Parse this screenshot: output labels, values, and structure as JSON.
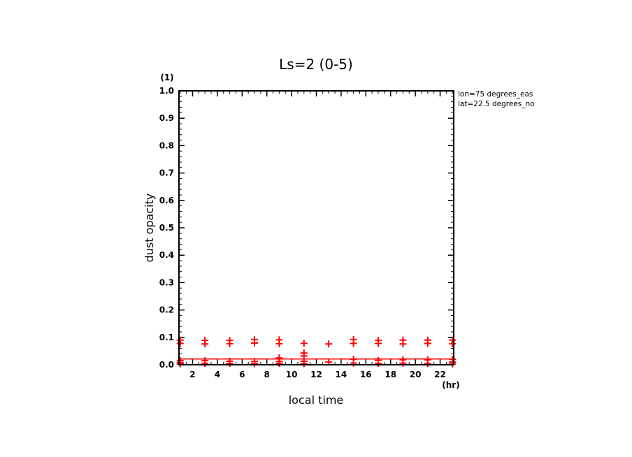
{
  "chart_data": {
    "type": "scatter",
    "title": "Ls=2 (0-5)",
    "xlabel": "local time",
    "ylabel": "dust opacity",
    "x_unit": "(hr)",
    "y_unit": "(1)",
    "info_lines": [
      "lon=75 degrees_eas",
      "lat=22.5 degrees_no"
    ],
    "xlim": [
      0.9,
      23.1
    ],
    "ylim": [
      0,
      1.0
    ],
    "x_ticks": [
      2,
      4,
      6,
      8,
      10,
      12,
      14,
      16,
      18,
      20,
      22
    ],
    "y_ticks": [
      "0.0",
      "0.1",
      "0.2",
      "0.3",
      "0.4",
      "0.5",
      "0.6",
      "0.7",
      "0.8",
      "0.9",
      "1.0"
    ],
    "marker": "+",
    "color": "#ff0000",
    "series": [
      {
        "x": [
          1,
          1,
          1,
          1,
          1,
          3,
          3,
          3,
          3,
          5,
          5,
          5,
          5,
          7,
          7,
          7,
          7,
          9,
          9,
          9,
          9,
          9,
          11,
          11,
          11,
          11,
          11,
          13,
          13,
          15,
          15,
          15,
          15,
          17,
          17,
          17,
          17,
          19,
          19,
          19,
          19,
          21,
          21,
          21,
          21,
          23,
          23,
          23,
          23,
          23
        ],
        "y": [
          0.078,
          0.09,
          0.015,
          0.008,
          0.003,
          0.076,
          0.089,
          0.015,
          0.005,
          0.077,
          0.089,
          0.013,
          0.005,
          0.079,
          0.092,
          0.012,
          0.004,
          0.077,
          0.091,
          0.025,
          0.012,
          0.005,
          0.078,
          0.043,
          0.032,
          0.013,
          0.004,
          0.076,
          0.01,
          0.078,
          0.092,
          0.02,
          0.006,
          0.078,
          0.089,
          0.016,
          0.005,
          0.076,
          0.09,
          0.018,
          0.006,
          0.078,
          0.09,
          0.018,
          0.004,
          0.077,
          0.09,
          0.02,
          0.01,
          0.003
        ]
      }
    ],
    "mean_line": {
      "y": 0.021,
      "color": "#ff0000"
    }
  }
}
